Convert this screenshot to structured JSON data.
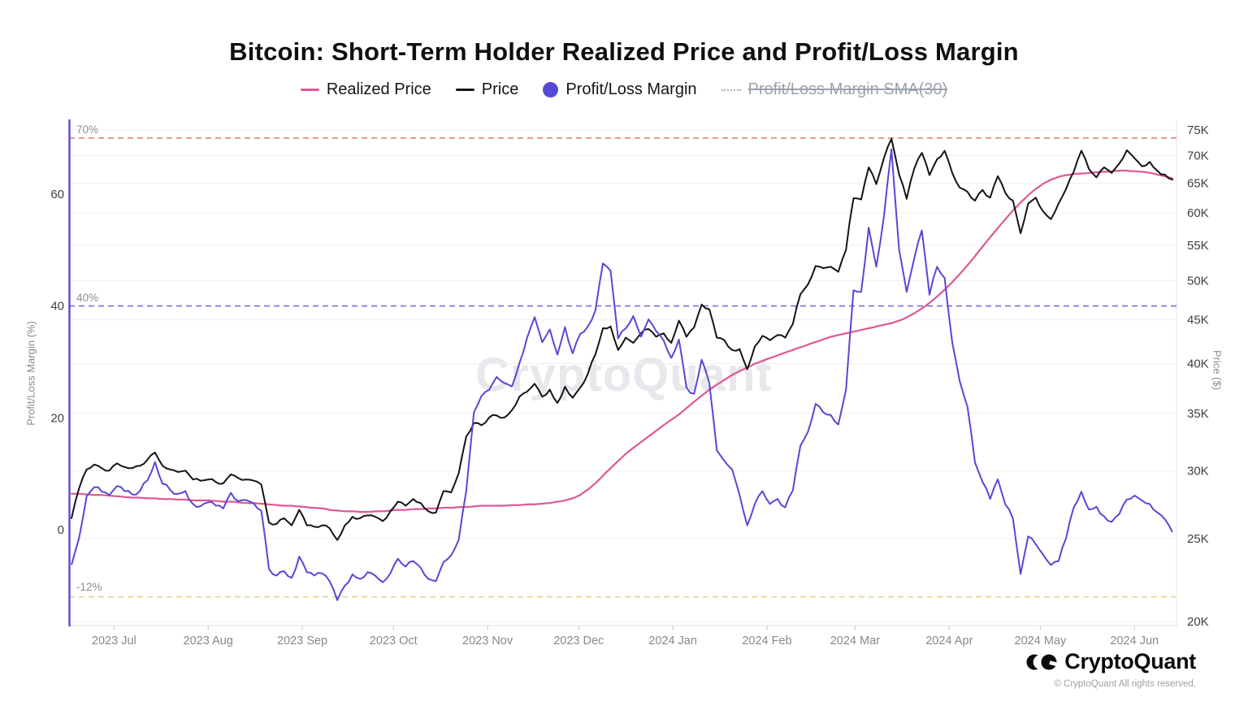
{
  "title": "Bitcoin: Short-Term Holder Realized Price and Profit/Loss Margin",
  "legend": {
    "items": [
      {
        "label": "Realized Price",
        "type": "line",
        "color": "#de5894",
        "disabled": false
      },
      {
        "label": "Price",
        "type": "line",
        "color": "#141414",
        "disabled": false
      },
      {
        "label": "Profit/Loss Margin",
        "type": "circle",
        "color": "#5649d8",
        "disabled": false
      },
      {
        "label": "Profit/Loss Margin SMA(30)",
        "type": "dotted-line",
        "color": "#a7adb6",
        "disabled": true
      }
    ]
  },
  "watermark": "CryptoQuant",
  "footer": {
    "brand": "CryptoQuant",
    "copyright": "© CryptoQuant All rights reserved."
  },
  "ref_lines": [
    {
      "label": "70%",
      "value": 70,
      "color": "#d98880"
    },
    {
      "label": "40%",
      "value": 40,
      "color": "#7671d9"
    },
    {
      "label": "-12%",
      "value": -12,
      "color": "#e5d08d"
    }
  ],
  "axes": {
    "left": {
      "title": "Profit/Loss Margin (%)",
      "scale": "linear",
      "range": [
        -17,
        73
      ],
      "ticks": [
        {
          "label": "60",
          "value": 60
        },
        {
          "label": "40",
          "value": 40
        },
        {
          "label": "20",
          "value": 20
        },
        {
          "label": "0",
          "value": 0
        }
      ]
    },
    "right": {
      "title": "Price ($)",
      "scale": "log",
      "range_k": [
        20,
        77
      ],
      "ticks": [
        {
          "label": "75K",
          "value": 75
        },
        {
          "label": "70K",
          "value": 70
        },
        {
          "label": "65K",
          "value": 65
        },
        {
          "label": "60K",
          "value": 60
        },
        {
          "label": "55K",
          "value": 55
        },
        {
          "label": "50K",
          "value": 50
        },
        {
          "label": "45K",
          "value": 45
        },
        {
          "label": "40K",
          "value": 40
        },
        {
          "label": "35K",
          "value": 35
        },
        {
          "label": "30K",
          "value": 30
        },
        {
          "label": "25K",
          "value": 25
        },
        {
          "label": "20K",
          "value": 20
        }
      ]
    },
    "x": {
      "ticks": [
        {
          "label": "2023 Jul",
          "day": 14
        },
        {
          "label": "2023 Aug",
          "day": 45
        },
        {
          "label": "2023 Sep",
          "day": 76
        },
        {
          "label": "2023 Oct",
          "day": 106
        },
        {
          "label": "2023 Nov",
          "day": 137
        },
        {
          "label": "2023 Dec",
          "day": 167
        },
        {
          "label": "2024 Jan",
          "day": 198
        },
        {
          "label": "2024 Feb",
          "day": 229
        },
        {
          "label": "2024 Mar",
          "day": 258
        },
        {
          "label": "2024 Apr",
          "day": 289
        },
        {
          "label": "2024 May",
          "day": 319
        },
        {
          "label": "2024 Jun",
          "day": 350
        }
      ]
    }
  },
  "chart_data": {
    "type": "mixed",
    "x_start": "2023-06-17",
    "x_end": "2024-06-14",
    "sample_step_days": 2.5,
    "grid": "horizontal at right-axis ticks",
    "legend_position": "top-center",
    "series": [
      {
        "name": "Profit/Loss Margin",
        "type": "area",
        "axis": "left",
        "unit": "%",
        "fill": "rgba(104,84,233,0.5)",
        "stroke": "#5847d6",
        "values": [
          -6.3,
          -1.5,
          6,
          7.6,
          6.8,
          6.2,
          7.8,
          6.9,
          6.3,
          6.9,
          8.8,
          12.1,
          8.2,
          7.1,
          6.4,
          6.9,
          4.6,
          4.2,
          4.9,
          4.3,
          3.8,
          6.6,
          5.1,
          5.3,
          4.7,
          3.4,
          -7,
          -8.2,
          -7.4,
          -8.6,
          -4.8,
          -7.6,
          -8.2,
          -7.8,
          -9.2,
          -12.6,
          -10,
          -8,
          -8.8,
          -7.6,
          -8.2,
          -9.4,
          -7.8,
          -5.2,
          -6.6,
          -5.6,
          -6.8,
          -8.8,
          -9.2,
          -5.8,
          -4.6,
          -1.8,
          7,
          21,
          23.9,
          25,
          27.3,
          26.2,
          25.6,
          29.8,
          34.3,
          38,
          33.5,
          35.8,
          31.3,
          36.2,
          31.5,
          35,
          36.3,
          39.2,
          47.6,
          46.3,
          34.2,
          36,
          38.2,
          34.5,
          37.6,
          35.5,
          33.8,
          30.7,
          34,
          25.4,
          24.3,
          30.4,
          26.2,
          14.2,
          12.3,
          10.8,
          6.2,
          0.8,
          4.6,
          6.9,
          4.6,
          5.5,
          4,
          7,
          15,
          17.5,
          22.5,
          21,
          20.5,
          18.8,
          25,
          42.8,
          42.5,
          54,
          47,
          56,
          68,
          50,
          42.5,
          48.5,
          53.5,
          42,
          47,
          45,
          33.5,
          26.5,
          22,
          12,
          8.5,
          5.5,
          9,
          4.5,
          2,
          -7.9,
          -1.2,
          -2.6,
          -4.5,
          -6.3,
          -5.6,
          -1.5,
          4,
          6.8,
          3.6,
          4.1,
          2.4,
          1.4,
          2.8,
          5.4,
          6.1,
          5.2,
          4.6,
          3.1,
          1.9,
          -0.4
        ]
      },
      {
        "name": "Price",
        "type": "line",
        "axis": "right",
        "unit": "K$",
        "stroke": "#141414",
        "values": [
          26.4,
          28.6,
          30.1,
          30.5,
          30.2,
          30,
          30.6,
          30.3,
          30.2,
          30.4,
          30.9,
          31.5,
          30.4,
          30.1,
          29.9,
          30,
          29.3,
          29.2,
          29.3,
          29.1,
          29,
          29.7,
          29.4,
          29.3,
          29.2,
          28.9,
          26.1,
          26,
          26.4,
          25.9,
          27,
          25.9,
          25.8,
          25.9,
          25.7,
          24.9,
          25.9,
          26.5,
          26.4,
          26.6,
          26.5,
          26.2,
          26.9,
          27.6,
          27.3,
          27.8,
          27.5,
          26.9,
          26.8,
          28.4,
          28.3,
          29.8,
          32.9,
          34.1,
          33.9,
          34.6,
          34.8,
          34.6,
          35.3,
          36.6,
          37.1,
          37.9,
          36.6,
          37.3,
          36,
          37.6,
          36.5,
          37.5,
          38.9,
          41,
          44,
          44.2,
          41.5,
          42.9,
          42.3,
          43.4,
          43.9,
          43,
          43.4,
          42.3,
          44.9,
          43,
          44.1,
          46.9,
          46.3,
          42.9,
          42.6,
          41.5,
          41.6,
          39.4,
          41.9,
          43.1,
          42.6,
          43.2,
          42.9,
          44.5,
          48.2,
          49.5,
          52,
          51.7,
          51.9,
          51.2,
          54.3,
          62.4,
          62.2,
          67.8,
          64.8,
          69.5,
          73.2,
          66.5,
          62.3,
          67.6,
          70.5,
          66.4,
          69.3,
          70.9,
          66.8,
          64.2,
          63.5,
          62,
          63.8,
          62.5,
          66.2,
          63.3,
          62,
          56.8,
          61.5,
          62.5,
          60.2,
          59,
          61.5,
          64,
          67,
          70.9,
          67.5,
          66,
          67.8,
          66.8,
          68.5,
          71,
          69.5,
          68,
          68.8,
          67.2,
          66.5,
          65.6
        ]
      },
      {
        "name": "Realized Price",
        "type": "line",
        "axis": "right",
        "unit": "K$",
        "stroke": "#de5894",
        "values": [
          28.2,
          28.2,
          28.15,
          28.1,
          28.1,
          28.05,
          28,
          27.95,
          27.9,
          27.9,
          27.85,
          27.85,
          27.8,
          27.8,
          27.75,
          27.75,
          27.7,
          27.7,
          27.7,
          27.65,
          27.6,
          27.6,
          27.55,
          27.5,
          27.5,
          27.45,
          27.4,
          27.35,
          27.3,
          27.3,
          27.25,
          27.2,
          27.15,
          27.1,
          27,
          26.95,
          26.9,
          26.9,
          26.85,
          26.85,
          26.9,
          26.9,
          26.95,
          27,
          27,
          27.05,
          27.05,
          27.1,
          27.1,
          27.15,
          27.15,
          27.2,
          27.2,
          27.25,
          27.3,
          27.3,
          27.3,
          27.3,
          27.35,
          27.35,
          27.4,
          27.4,
          27.45,
          27.5,
          27.6,
          27.7,
          27.85,
          28.1,
          28.5,
          29,
          29.6,
          30.2,
          30.8,
          31.4,
          31.9,
          32.4,
          32.9,
          33.4,
          33.9,
          34.4,
          34.9,
          35.5,
          36.1,
          36.7,
          37.3,
          37.8,
          38.3,
          38.8,
          39.2,
          39.6,
          40,
          40.3,
          40.6,
          40.9,
          41.2,
          41.5,
          41.8,
          42.1,
          42.4,
          42.7,
          43,
          43.2,
          43.4,
          43.6,
          43.8,
          44,
          44.2,
          44.4,
          44.6,
          44.9,
          45.3,
          45.8,
          46.4,
          47.1,
          47.9,
          48.8,
          49.8,
          50.9,
          52.1,
          53.4,
          54.8,
          56.2,
          57.6,
          59,
          60.4,
          61.7,
          62.9,
          64,
          64.9,
          65.6,
          66.1,
          66.4,
          66.6,
          66.7,
          66.8,
          66.9,
          67,
          67.1,
          67.2,
          67.2,
          67.1,
          67,
          66.8,
          66.5,
          66.2,
          65.8
        ]
      },
      {
        "name": "Profit/Loss Margin SMA(30)",
        "type": "line",
        "axis": "left",
        "unit": "%",
        "disabled": true,
        "values": []
      }
    ]
  }
}
